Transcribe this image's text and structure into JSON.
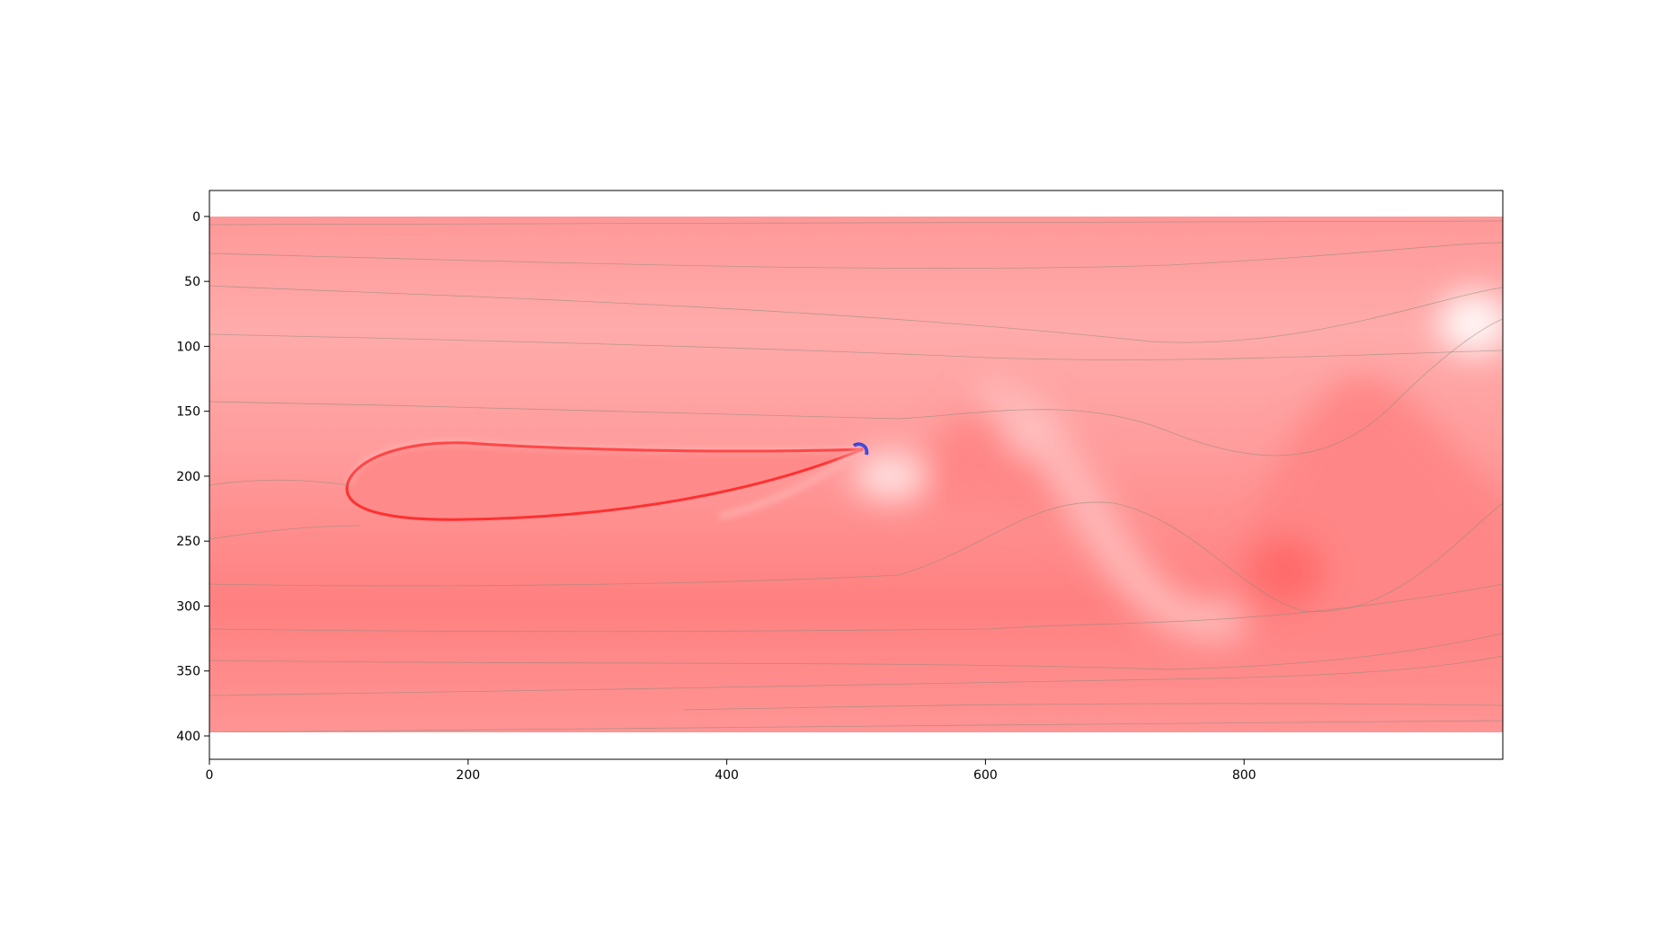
{
  "chart_data": {
    "type": "image",
    "xlim": [
      0,
      1000
    ],
    "ylim": [
      418,
      -20
    ],
    "xticks": [
      0,
      200,
      400,
      600,
      800
    ],
    "yticks": [
      0,
      50,
      100,
      150,
      200,
      250,
      300,
      350,
      400
    ]
  }
}
